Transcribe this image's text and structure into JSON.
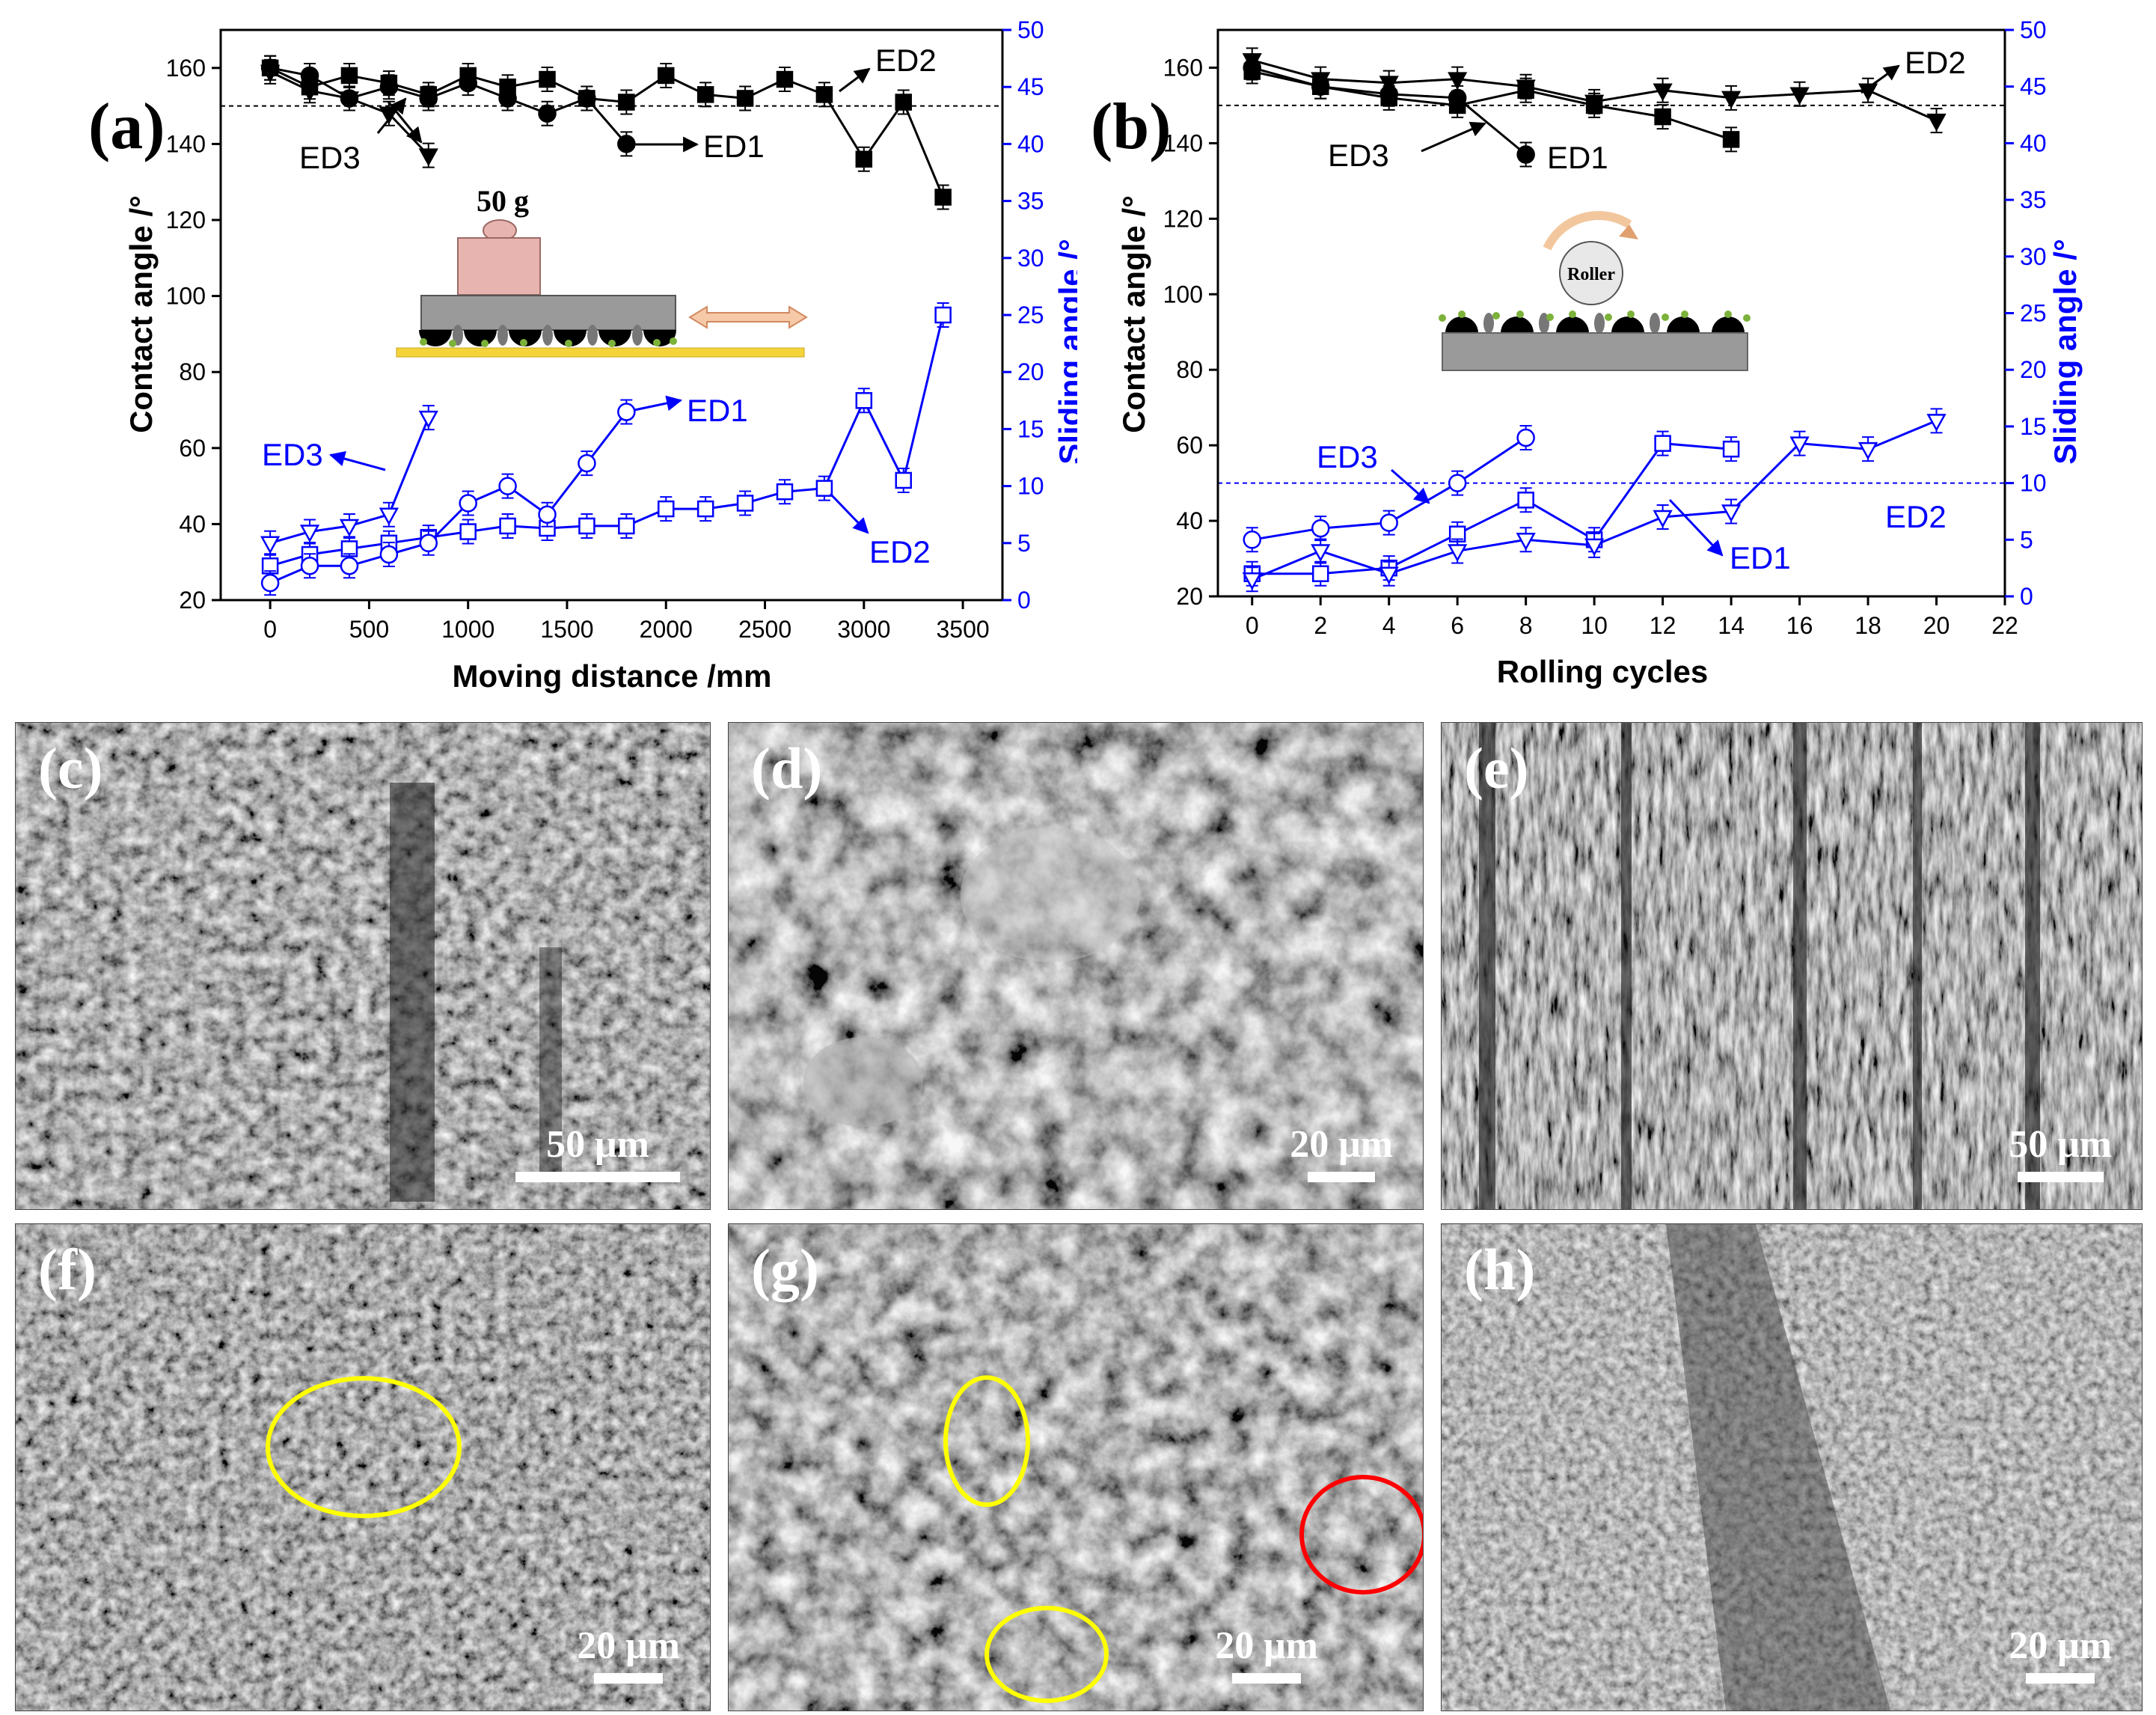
{
  "colors": {
    "black": "#000000",
    "blue": "#0000ff",
    "highlight_yellow": "#ffff00",
    "highlight_red": "#ff0000"
  },
  "chart_data": [
    {
      "type": "line",
      "panel_label": "(a)",
      "xlabel": "Moving distance /mm",
      "ylabel": "Contact angle /°",
      "y2label": "Sliding angle /°",
      "xlim": [
        -250,
        3700
      ],
      "ylim": [
        20,
        170
      ],
      "y2lim": [
        0,
        50
      ],
      "xticks": [
        0,
        500,
        1000,
        1500,
        2000,
        2500,
        3000,
        3500
      ],
      "yticks": [
        20,
        40,
        60,
        80,
        100,
        120,
        140,
        160
      ],
      "y2ticks": [
        0,
        5,
        10,
        15,
        20,
        25,
        30,
        35,
        40,
        45,
        50
      ],
      "reference_lines": [
        {
          "axis": "y",
          "value": 150
        }
      ],
      "inset_text": [
        "50 g"
      ],
      "series": [
        {
          "name": "ED2",
          "axis": "contact",
          "marker": "filled-square",
          "x": [
            0,
            200,
            400,
            600,
            800,
            1000,
            1200,
            1400,
            1600,
            1800,
            2000,
            2200,
            2400,
            2600,
            2800,
            3000,
            3200,
            3400
          ],
          "values": [
            160,
            155,
            158,
            156,
            153,
            158,
            155,
            157,
            152,
            151,
            158,
            153,
            152,
            157,
            153,
            136,
            151,
            126
          ]
        },
        {
          "name": "ED1",
          "axis": "contact",
          "marker": "filled-circle",
          "x": [
            0,
            200,
            400,
            600,
            800,
            1000,
            1200,
            1400,
            1600,
            1800
          ],
          "values": [
            160,
            158,
            152,
            155,
            152,
            156,
            152,
            148,
            152,
            140
          ]
        },
        {
          "name": "ED3",
          "axis": "contact",
          "marker": "filled-down-triangle",
          "x": [
            0,
            200,
            400,
            600,
            800
          ],
          "values": [
            159,
            154,
            152,
            148,
            137
          ]
        },
        {
          "name": "ED2",
          "axis": "sliding",
          "marker": "open-square",
          "x": [
            0,
            200,
            400,
            600,
            800,
            1000,
            1200,
            1400,
            1600,
            1800,
            2000,
            2200,
            2400,
            2600,
            2800,
            3000,
            3200,
            3400
          ],
          "values": [
            3,
            4,
            4.5,
            5,
            5.5,
            6,
            6.5,
            6.3,
            6.5,
            6.5,
            8,
            8,
            8.5,
            9.5,
            9.8,
            17.5,
            10.5,
            25
          ]
        },
        {
          "name": "ED1",
          "axis": "sliding",
          "marker": "open-circle",
          "x": [
            0,
            200,
            400,
            600,
            800,
            1000,
            1200,
            1400,
            1600,
            1800
          ],
          "values": [
            1.5,
            3,
            3,
            4,
            5,
            8.5,
            10,
            7.5,
            12,
            16.5
          ]
        },
        {
          "name": "ED3",
          "axis": "sliding",
          "marker": "open-down-triangle",
          "x": [
            0,
            200,
            400,
            600,
            800
          ],
          "values": [
            5,
            6,
            6.5,
            7.5,
            16
          ]
        }
      ]
    },
    {
      "type": "line",
      "panel_label": "(b)",
      "xlabel": "Rolling cycles",
      "ylabel": "Contact angle /°",
      "y2label": "Sliding angle /°",
      "xlim": [
        -1,
        22
      ],
      "ylim": [
        20,
        170
      ],
      "y2lim": [
        0,
        50
      ],
      "xticks": [
        0,
        2,
        4,
        6,
        8,
        10,
        12,
        14,
        16,
        18,
        20,
        22
      ],
      "yticks": [
        20,
        40,
        60,
        80,
        100,
        120,
        140,
        160
      ],
      "y2ticks": [
        0,
        5,
        10,
        15,
        20,
        25,
        30,
        35,
        40,
        45,
        50
      ],
      "reference_lines": [
        {
          "axis": "y",
          "value": 150
        },
        {
          "axis": "y2",
          "value": 10
        }
      ],
      "inset_text": [
        "Roller"
      ],
      "series": [
        {
          "name": "ED2",
          "axis": "contact",
          "marker": "filled-down-triangle",
          "x": [
            0,
            2,
            4,
            6,
            8,
            10,
            12,
            14,
            16,
            18,
            20
          ],
          "values": [
            162,
            157,
            156,
            157,
            155,
            151,
            154,
            152,
            153,
            154,
            146
          ]
        },
        {
          "name": "ED1",
          "axis": "contact",
          "marker": "filled-square",
          "x": [
            0,
            2,
            4,
            6,
            8,
            10,
            12,
            14
          ],
          "values": [
            159,
            155,
            152,
            150,
            154,
            150,
            147,
            141
          ]
        },
        {
          "name": "ED3",
          "axis": "contact",
          "marker": "filled-circle",
          "x": [
            0,
            2,
            4,
            6,
            8
          ],
          "values": [
            160,
            155,
            153,
            152,
            137
          ]
        },
        {
          "name": "ED3",
          "axis": "sliding",
          "marker": "open-circle",
          "x": [
            0,
            2,
            4,
            6,
            8
          ],
          "values": [
            5,
            6,
            6.5,
            10,
            14
          ]
        },
        {
          "name": "ED1",
          "axis": "sliding",
          "marker": "open-square",
          "x": [
            0,
            2,
            4,
            6,
            8,
            10,
            12,
            14
          ],
          "values": [
            2,
            2,
            2.5,
            5.5,
            8.5,
            5,
            13.5,
            13
          ]
        },
        {
          "name": "ED2",
          "axis": "sliding",
          "marker": "open-down-triangle",
          "x": [
            0,
            2,
            4,
            6,
            8,
            10,
            12,
            14,
            16,
            18,
            20
          ],
          "values": [
            1.5,
            4,
            2,
            4,
            5,
            4.5,
            7,
            7.5,
            13.5,
            13,
            15.5
          ]
        }
      ]
    }
  ],
  "panels": [
    {
      "label": "(c)",
      "scale": "50 μm"
    },
    {
      "label": "(d)",
      "scale": "20 μm"
    },
    {
      "label": "(e)",
      "scale": "50 μm"
    },
    {
      "label": "(f)",
      "scale": "20 μm"
    },
    {
      "label": "(g)",
      "scale": "20 μm"
    },
    {
      "label": "(h)",
      "scale": "20 μm"
    }
  ]
}
